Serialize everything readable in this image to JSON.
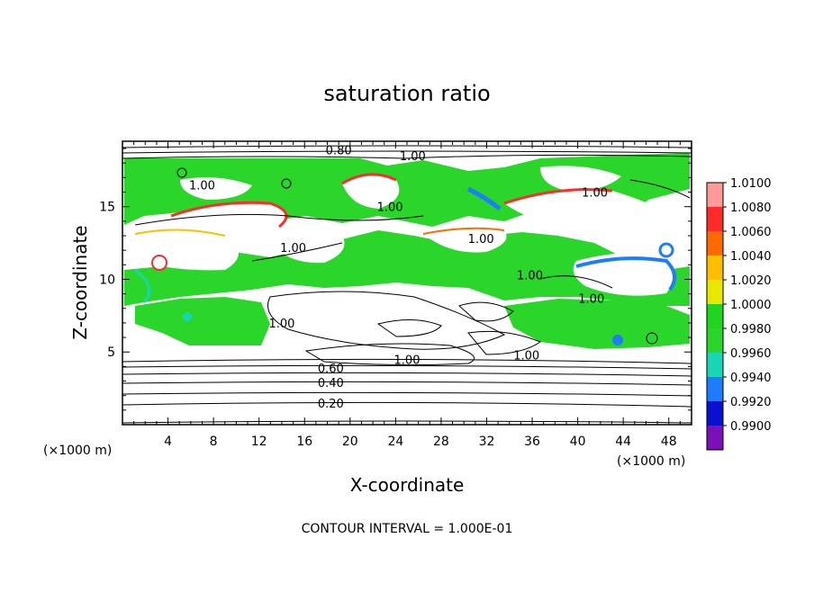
{
  "chart_data": {
    "type": "heatmap",
    "title": "saturation ratio",
    "xlabel": "X-coordinate",
    "ylabel": "Z-coordinate",
    "x_unit": "(×1000 m)",
    "y_unit": "(×1000 m)",
    "xlim": [
      0,
      50
    ],
    "ylim": [
      0,
      19.5
    ],
    "x_ticks": [
      4,
      8,
      12,
      16,
      20,
      24,
      28,
      32,
      36,
      40,
      44,
      48
    ],
    "y_ticks": [
      5,
      10,
      15
    ],
    "colorbar": {
      "range": [
        0.99,
        1.01
      ],
      "tick_labels": [
        "1.0100",
        "1.0080",
        "1.0060",
        "1.0040",
        "1.0020",
        "1.0000",
        "0.9980",
        "0.9960",
        "0.9940",
        "0.9920",
        "0.9900"
      ],
      "colors": [
        "#ff9a9a",
        "#ff2a2a",
        "#ff6a00",
        "#ffbe00",
        "#e8e800",
        "#1ed61e",
        "#2ad62a",
        "#18d6b4",
        "#1c7dff",
        "#0a10d0",
        "#7a10b8"
      ]
    },
    "contour_labels": [
      {
        "text": "0.80",
        "x": 19.0,
        "y": 18.9
      },
      {
        "text": "1.00",
        "x": 25.5,
        "y": 18.5
      },
      {
        "text": "1.00",
        "x": 7.0,
        "y": 16.5
      },
      {
        "text": "1.00",
        "x": 23.5,
        "y": 15.0
      },
      {
        "text": "1.00",
        "x": 41.5,
        "y": 16.0
      },
      {
        "text": "1.00",
        "x": 15.0,
        "y": 12.2
      },
      {
        "text": "1.00",
        "x": 31.5,
        "y": 12.8
      },
      {
        "text": "1.00",
        "x": 35.8,
        "y": 10.3
      },
      {
        "text": "1.00",
        "x": 41.2,
        "y": 8.7
      },
      {
        "text": "1.00",
        "x": 14.0,
        "y": 7.0
      },
      {
        "text": "1.00",
        "x": 25.0,
        "y": 4.5
      },
      {
        "text": "1.00",
        "x": 35.5,
        "y": 4.8
      },
      {
        "text": "0.60",
        "x": 18.3,
        "y": 3.9
      },
      {
        "text": "0.40",
        "x": 18.3,
        "y": 2.9
      },
      {
        "text": "0.20",
        "x": 18.3,
        "y": 1.5
      }
    ],
    "footer": "CONTOUR INTERVAL = 1.000E-01"
  }
}
